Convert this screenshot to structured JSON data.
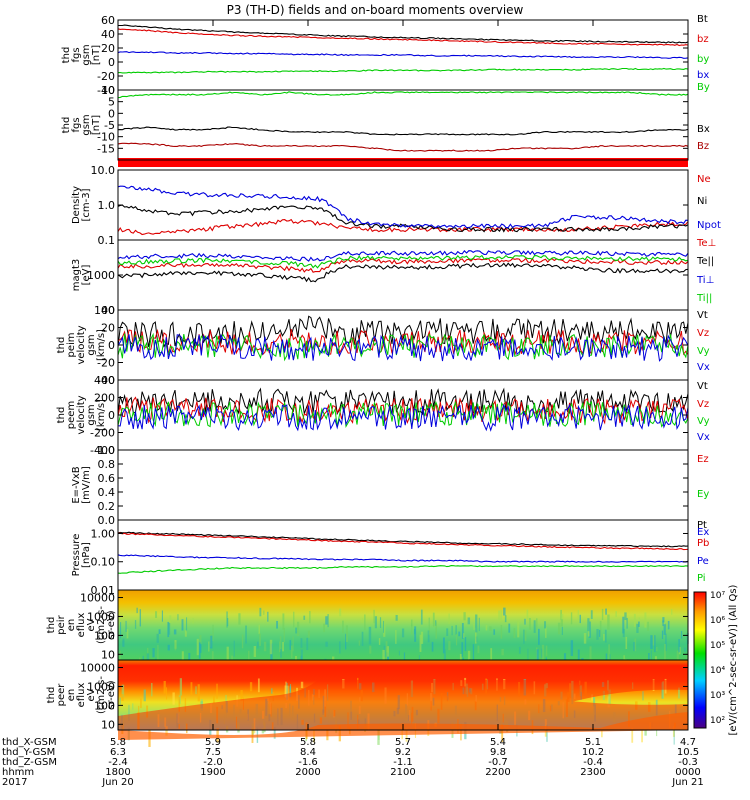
{
  "chart_data": {
    "type": "line",
    "title": "P3 (TH-D) fields and on-board moments overview",
    "panels": [
      {
        "ylabel": [
          "thd",
          "fgs",
          "gsm",
          "[nT]"
        ],
        "ylim": [
          -40,
          60
        ],
        "yticks": [
          "60",
          "40",
          "20",
          "0",
          "-20",
          "-40"
        ],
        "series": [
          {
            "name": "Bt",
            "color": "#000000",
            "values": [
              53,
              50,
              47,
              45,
              43,
              41,
              40,
              38,
              37,
              36,
              35,
              34,
              33,
              32,
              31,
              30,
              30,
              29,
              29,
              28,
              28
            ]
          },
          {
            "name": "bz",
            "color": "#dd0000",
            "values": [
              47,
              45,
              42,
              40,
              38,
              37,
              36,
              35,
              34,
              33,
              32,
              31,
              30,
              29,
              28,
              27,
              26,
              26,
              25,
              25,
              24
            ]
          },
          {
            "name": "by",
            "color": "#00cc00",
            "values": [
              -15,
              -15,
              -15,
              -14,
              -14,
              -14,
              -13,
              -13,
              -13,
              -12,
              -12,
              -12,
              -12,
              -11,
              -11,
              -11,
              -11,
              -10,
              -10,
              -10,
              -10
            ]
          },
          {
            "name": "bx",
            "color": "#0000dd",
            "values": [
              14,
              14,
              13,
              13,
              12,
              12,
              11,
              11,
              10,
              10,
              10,
              9,
              9,
              9,
              8,
              8,
              7,
              7,
              7,
              6,
              6
            ]
          }
        ]
      },
      {
        "ylabel": [
          "thd",
          "fgs",
          "gsm",
          "[nT]"
        ],
        "ylim": [
          -20,
          10
        ],
        "yticks": [
          "10",
          "5",
          "0",
          "-5",
          "-10",
          "-15"
        ],
        "series": [
          {
            "name": "By",
            "color": "#00cc00",
            "values": [
              7,
              8,
              8,
              8,
              9,
              8,
              9,
              8,
              8,
              9,
              9,
              9,
              9,
              9,
              9,
              9,
              9,
              9,
              9,
              8,
              8
            ]
          },
          {
            "name": "Bx",
            "color": "#000000",
            "values": [
              -7,
              -6,
              -7,
              -7,
              -6,
              -7,
              -8,
              -8,
              -8,
              -9,
              -9,
              -9,
              -9,
              -9,
              -9,
              -8,
              -8,
              -8,
              -8,
              -7,
              -7
            ]
          },
          {
            "name": "Bz",
            "color": "#aa0000",
            "values": [
              -13,
              -13,
              -14,
              -14,
              -13,
              -14,
              -14,
              -14,
              -14,
              -15,
              -16,
              -16,
              -16,
              -16,
              -15,
              -15,
              -15,
              -14,
              -14,
              -14,
              -14
            ]
          }
        ]
      },
      {
        "ylabel": [
          "Density",
          "[cm-3]"
        ],
        "ylim": [
          0.1,
          10
        ],
        "log": true,
        "yticks": [
          "10.0",
          "1.0",
          "0.1"
        ],
        "series": [
          {
            "name": "Ne",
            "color": "#dd0000",
            "values": [
              0.2,
              0.15,
              0.17,
              0.2,
              0.25,
              0.28,
              0.35,
              0.3,
              0.22,
              0.2,
              0.2,
              0.2,
              0.2,
              0.2,
              0.2,
              0.2,
              0.2,
              0.22,
              0.25,
              0.28,
              0.3
            ]
          },
          {
            "name": "Ni",
            "color": "#000000",
            "values": [
              1.0,
              0.7,
              0.55,
              0.6,
              0.65,
              0.75,
              0.9,
              0.8,
              0.3,
              0.25,
              0.25,
              0.22,
              0.2,
              0.2,
              0.2,
              0.2,
              0.2,
              0.2,
              0.22,
              0.25,
              0.25
            ]
          },
          {
            "name": "Npot",
            "color": "#0000dd",
            "values": [
              3.5,
              2.8,
              2.2,
              2.0,
              1.9,
              1.8,
              1.7,
              1.5,
              0.4,
              0.28,
              0.25,
              0.25,
              0.25,
              0.25,
              0.25,
              0.25,
              0.45,
              0.45,
              0.4,
              0.35,
              0.32
            ]
          }
        ]
      },
      {
        "ylabel": [
          "magt3",
          "[eV]"
        ],
        "ylim": [
          100,
          10000
        ],
        "log": true,
        "yticks": [
          "1000",
          "100"
        ],
        "series": [
          {
            "name": "Te⊥",
            "color": "#dd0000",
            "values": [
              1800,
              1800,
              1900,
              2000,
              1900,
              1700,
              1500,
              1300,
              2600,
              2500,
              2400,
              2500,
              2600,
              2600,
              2600,
              2600,
              2500,
              2400,
              2300,
              2300,
              2200
            ]
          },
          {
            "name": "Te||",
            "color": "#000000",
            "values": [
              900,
              1000,
              1100,
              1200,
              1100,
              1000,
              850,
              700,
              1800,
              1700,
              1600,
              1700,
              1800,
              1900,
              1900,
              1800,
              1600,
              1400,
              1300,
              1300,
              1300
            ]
          },
          {
            "name": "Ti⊥",
            "color": "#0000dd",
            "values": [
              3200,
              3400,
              3500,
              3600,
              3500,
              3300,
              3000,
              2700,
              4200,
              4300,
              4200,
              4200,
              4300,
              4400,
              4400,
              4300,
              4200,
              4100,
              4000,
              3900,
              3900
            ]
          },
          {
            "name": "Ti||",
            "color": "#00cc00",
            "values": [
              2200,
              2400,
              2500,
              2600,
              2500,
              2300,
              2100,
              1800,
              3000,
              3100,
              3000,
              3000,
              3100,
              3200,
              3200,
              3100,
              3000,
              2900,
              2900,
              2800,
              2800
            ]
          }
        ]
      },
      {
        "ylabel": [
          "thd",
          "peim",
          "velocity",
          "gsm",
          "[km/s]"
        ],
        "ylim": [
          -40,
          40
        ],
        "yticks": [
          "40",
          "20",
          "0",
          "-20",
          "-40"
        ],
        "series": [
          {
            "name": "Vt",
            "color": "#000000",
            "values": [
              12,
              12,
              12,
              13,
              13,
              15,
              22,
              18,
              14,
              15,
              15,
              16,
              16,
              16,
              16,
              16,
              16,
              15,
              15,
              15,
              15
            ]
          },
          {
            "name": "Vz",
            "color": "#dd0000",
            "values": [
              3,
              3,
              3,
              3,
              3,
              2,
              4,
              3,
              3,
              3,
              3,
              3,
              3,
              3,
              3,
              3,
              3,
              3,
              3,
              3,
              3
            ]
          },
          {
            "name": "Vy",
            "color": "#00cc00",
            "values": [
              -1,
              -1,
              -1,
              -1,
              -1,
              -2,
              -5,
              -3,
              -2,
              -2,
              -2,
              -2,
              -2,
              -2,
              -2,
              -2,
              -2,
              -2,
              -2,
              -2,
              -2
            ]
          },
          {
            "name": "Vx",
            "color": "#0000dd",
            "values": [
              -2,
              -2,
              -2,
              -2,
              -2,
              -3,
              -8,
              -4,
              -4,
              -4,
              -4,
              -4,
              -4,
              -4,
              -4,
              -4,
              -4,
              -4,
              -4,
              -4,
              -4
            ]
          }
        ]
      },
      {
        "ylabel": [
          "thd",
          "peem",
          "velocity",
          "gsm",
          "[km/s]"
        ],
        "ylim": [
          -400,
          400
        ],
        "yticks": [
          "400",
          "200",
          "0",
          "-200",
          "-400"
        ],
        "series": [
          {
            "name": "Vt",
            "color": "#000000",
            "values": [
              160,
              165,
              170,
              165,
              160,
              160,
              160,
              150,
              145,
              150,
              150,
              150,
              155,
              150,
              150,
              150,
              150,
              150,
              145,
              145,
              145
            ]
          },
          {
            "name": "Vz",
            "color": "#dd0000",
            "values": [
              60,
              60,
              60,
              60,
              55,
              55,
              55,
              50,
              50,
              50,
              50,
              50,
              50,
              50,
              50,
              50,
              50,
              50,
              50,
              50,
              50
            ]
          },
          {
            "name": "Vy",
            "color": "#00cc00",
            "values": [
              10,
              10,
              10,
              10,
              10,
              10,
              10,
              10,
              10,
              10,
              10,
              10,
              10,
              10,
              10,
              10,
              10,
              10,
              10,
              10,
              10
            ]
          },
          {
            "name": "Vx",
            "color": "#0000dd",
            "values": [
              -30,
              -30,
              -30,
              -30,
              -30,
              -30,
              -30,
              -30,
              -30,
              -30,
              -30,
              -30,
              -30,
              -30,
              -30,
              -30,
              -30,
              -30,
              -30,
              -30,
              -30
            ]
          }
        ]
      },
      {
        "ylabel": [
          "E=-VxB",
          "[mV/m]"
        ],
        "ylim": [
          0.0,
          1.0
        ],
        "yticks": [
          "1.0",
          "0.8",
          "0.6",
          "0.4",
          "0.2",
          "0.0"
        ],
        "series": [
          {
            "name": "Ez",
            "color": "#dd0000",
            "values": []
          },
          {
            "name": "Ey",
            "color": "#00cc00",
            "values": []
          },
          {
            "name": "Ex",
            "color": "#0000dd",
            "values": []
          }
        ]
      },
      {
        "ylabel": [
          "Pressure",
          "[nPa]"
        ],
        "ylim": [
          0.01,
          3.0
        ],
        "log": true,
        "yticks": [
          "1.00",
          "0.10",
          "0.01"
        ],
        "series": [
          {
            "name": "Pt",
            "color": "#000000",
            "values": [
              1.1,
              1.0,
              0.95,
              0.88,
              0.82,
              0.76,
              0.7,
              0.64,
              0.6,
              0.56,
              0.52,
              0.49,
              0.46,
              0.44,
              0.42,
              0.4,
              0.38,
              0.37,
              0.36,
              0.35,
              0.35
            ]
          },
          {
            "name": "Pb",
            "color": "#dd0000",
            "values": [
              1.0,
              0.92,
              0.85,
              0.79,
              0.73,
              0.67,
              0.62,
              0.57,
              0.53,
              0.49,
              0.46,
              0.43,
              0.4,
              0.38,
              0.36,
              0.34,
              0.32,
              0.31,
              0.3,
              0.29,
              0.28
            ]
          },
          {
            "name": "Pe",
            "color": "#0000dd",
            "values": [
              0.17,
              0.16,
              0.15,
              0.14,
              0.14,
              0.13,
              0.13,
              0.12,
              0.12,
              0.12,
              0.11,
              0.11,
              0.11,
              0.1,
              0.1,
              0.1,
              0.1,
              0.1,
              0.1,
              0.1,
              0.1
            ]
          },
          {
            "name": "Pi",
            "color": "#00cc00",
            "values": [
              0.04,
              0.045,
              0.05,
              0.055,
              0.06,
              0.06,
              0.06,
              0.06,
              0.065,
              0.065,
              0.065,
              0.07,
              0.07,
              0.07,
              0.07,
              0.07,
              0.07,
              0.07,
              0.07,
              0.07,
              0.07
            ]
          }
        ]
      },
      {
        "type": "heatmap",
        "ylabel": [
          "thd",
          "peir",
          "en",
          "eflux",
          "eV",
          "(cm2-s-",
          "sr-eV)"
        ],
        "ylim": [
          5,
          25000
        ],
        "log": true,
        "yticks": [
          "10000",
          "1000",
          "100",
          "10"
        ]
      },
      {
        "type": "heatmap",
        "ylabel": [
          "thd",
          "peer",
          "en",
          "eflux",
          "eV",
          "(cm2-s-",
          "sr-eV)"
        ],
        "ylim": [
          5,
          25000
        ],
        "log": true,
        "yticks": [
          "10000",
          "1000",
          "100",
          "10"
        ]
      }
    ],
    "colorbar": {
      "label": "[eV/(cm^2-sec-sr-eV)] (All Qs)",
      "ticks": [
        "10⁷",
        "10⁶",
        "10⁵",
        "10⁴",
        "10³",
        "10²"
      ]
    },
    "x_ticks": [
      {
        "x": "5.8",
        "y": "6.3",
        "z": "-2.4",
        "time": "1800",
        "date": "Jun 20"
      },
      {
        "x": "5.9",
        "y": "7.5",
        "z": "-2.0",
        "time": "1900",
        "date": ""
      },
      {
        "x": "5.8",
        "y": "8.4",
        "z": "-1.6",
        "time": "2000",
        "date": ""
      },
      {
        "x": "5.7",
        "y": "9.2",
        "z": "-1.1",
        "time": "2100",
        "date": ""
      },
      {
        "x": "5.4",
        "y": "9.8",
        "z": "-0.7",
        "time": "2200",
        "date": ""
      },
      {
        "x": "5.1",
        "y": "10.2",
        "z": "-0.4",
        "time": "2300",
        "date": ""
      },
      {
        "x": "4.7",
        "y": "10.5",
        "z": "-0.3",
        "time": "0000",
        "date": "Jun 21"
      }
    ],
    "x_row_labels": [
      "thd_X-GSM",
      "thd_Y-GSM",
      "thd_Z-GSM",
      "hhmm",
      "2017"
    ]
  }
}
